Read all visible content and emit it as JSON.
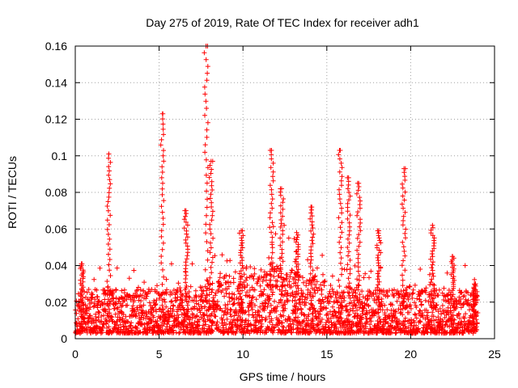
{
  "chart_data": {
    "type": "scatter",
    "title": "Day 275 of 2019, Rate Of TEC Index for receiver adh1",
    "xlabel": "GPS time / hours",
    "ylabel": "ROTI / TECUs",
    "xlim": [
      0,
      25
    ],
    "ylim": [
      0,
      0.16
    ],
    "x_ticks": [
      0,
      5,
      10,
      15,
      20,
      25
    ],
    "y_ticks": [
      0,
      0.02,
      0.04,
      0.06,
      0.08,
      0.1,
      0.12,
      0.14,
      0.16
    ],
    "x_tick_labels": [
      "0",
      "5",
      "10",
      "15",
      "20",
      "25"
    ],
    "y_tick_labels": [
      "0",
      "0.02",
      "0.04",
      "0.06",
      "0.08",
      "0.1",
      "0.12",
      "0.14",
      "0.16"
    ],
    "grid": true,
    "marker": "+",
    "marker_color": "#ff0000",
    "series": [
      {
        "name": "ROTI",
        "x_range": [
          0,
          24
        ],
        "typical_max": 0.04,
        "spikes": [
          {
            "x": 0.4,
            "y": 0.041
          },
          {
            "x": 2.0,
            "y": 0.101
          },
          {
            "x": 5.2,
            "y": 0.123
          },
          {
            "x": 6.6,
            "y": 0.07
          },
          {
            "x": 7.8,
            "y": 0.16
          },
          {
            "x": 8.1,
            "y": 0.097
          },
          {
            "x": 9.9,
            "y": 0.059
          },
          {
            "x": 11.7,
            "y": 0.103
          },
          {
            "x": 12.3,
            "y": 0.082
          },
          {
            "x": 13.2,
            "y": 0.058
          },
          {
            "x": 14.1,
            "y": 0.072
          },
          {
            "x": 15.8,
            "y": 0.103
          },
          {
            "x": 16.3,
            "y": 0.088
          },
          {
            "x": 16.9,
            "y": 0.085
          },
          {
            "x": 18.1,
            "y": 0.059
          },
          {
            "x": 19.6,
            "y": 0.093
          },
          {
            "x": 21.3,
            "y": 0.062
          },
          {
            "x": 22.5,
            "y": 0.045
          },
          {
            "x": 23.8,
            "y": 0.03
          }
        ]
      }
    ]
  }
}
